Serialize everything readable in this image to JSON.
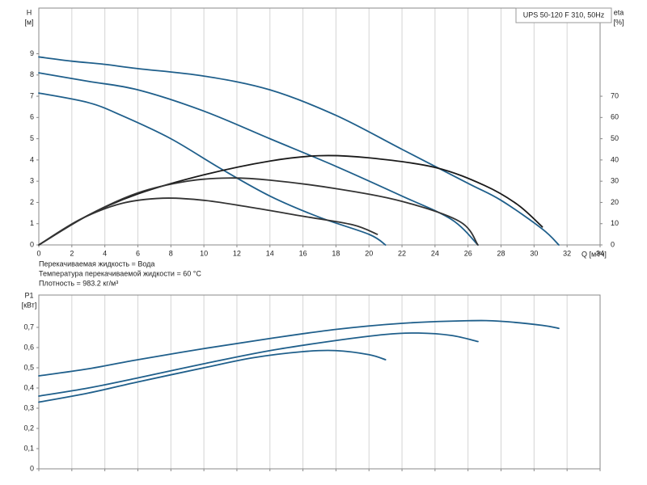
{
  "chart_data": [
    {
      "type": "line",
      "title": "UPS 50-120 F 310, 50Hz",
      "y_label": "H",
      "y_unit": "[м]",
      "y2_label": "eta",
      "y2_unit": "[%]",
      "x_label": "Q [м³/ч]",
      "notes": [
        "Перекачиваемая жидкость = Вода",
        "Температура перекачиваемой жидкости = 60 °C",
        "Плотность = 983.2 кг/м³"
      ],
      "xlim": [
        0,
        34
      ],
      "xticks": [
        0,
        2,
        4,
        6,
        8,
        10,
        12,
        14,
        16,
        18,
        20,
        22,
        24,
        26,
        28,
        30,
        32,
        34
      ],
      "ylim": [
        0,
        11.15
      ],
      "yticks": [
        0,
        1,
        2,
        3,
        4,
        5,
        6,
        7,
        8,
        9
      ],
      "y2lim": [
        0,
        111.5
      ],
      "y2ticks": [
        0,
        10,
        20,
        30,
        40,
        50,
        60,
        70
      ],
      "grid": "x",
      "series": [
        {
          "color": "#1f5f8b",
          "x": [
            0,
            2,
            4,
            6,
            10,
            14,
            18,
            22,
            26,
            28,
            30.5,
            31.5
          ],
          "values": [
            8.85,
            8.65,
            8.5,
            8.3,
            7.95,
            7.3,
            6.1,
            4.5,
            2.9,
            2.1,
            0.75,
            0
          ]
        },
        {
          "color": "#1f5f8b",
          "x": [
            0,
            3,
            6,
            10,
            14,
            18,
            22,
            25,
            26.6
          ],
          "values": [
            8.1,
            7.7,
            7.3,
            6.3,
            5.0,
            3.7,
            2.3,
            1.2,
            0
          ]
        },
        {
          "color": "#1f5f8b",
          "x": [
            0,
            3,
            5,
            8,
            11,
            14,
            17,
            20,
            21
          ],
          "values": [
            7.15,
            6.7,
            6.1,
            5.0,
            3.6,
            2.3,
            1.3,
            0.5,
            0
          ]
        },
        {
          "color": "#1a1a1a",
          "axis": "y2",
          "x": [
            0,
            3,
            6,
            10,
            14,
            17,
            20,
            24,
            27,
            29,
            30.5
          ],
          "values": [
            0,
            14,
            24,
            33,
            39.5,
            42,
            41,
            36.5,
            28,
            19,
            8.5
          ]
        },
        {
          "color": "#333333",
          "axis": "y2",
          "x": [
            0,
            3,
            6,
            9,
            11.5,
            14,
            18,
            22,
            25.5,
            26.6
          ],
          "values": [
            0,
            14,
            24.5,
            30,
            31.5,
            30.5,
            26.5,
            20.5,
            11,
            0
          ]
        },
        {
          "color": "#333333",
          "axis": "y2",
          "x": [
            0,
            2.5,
            5,
            7.5,
            10,
            13,
            16,
            19,
            20.5
          ],
          "values": [
            0,
            12,
            19.5,
            22,
            21,
            17.5,
            13.5,
            9.5,
            5
          ]
        }
      ]
    },
    {
      "type": "line",
      "y_label": "P1",
      "y_unit": "[кВт]",
      "xlim": [
        0,
        34
      ],
      "xticks": [
        0,
        2,
        4,
        6,
        8,
        10,
        12,
        14,
        16,
        18,
        20,
        22,
        24,
        26,
        28,
        30,
        32,
        34
      ],
      "ylim": [
        0,
        0.86
      ],
      "yticks": [
        {
          "value": 0,
          "label": "0"
        },
        {
          "value": 0.1,
          "label": "0,1"
        },
        {
          "value": 0.2,
          "label": "0,2"
        },
        {
          "value": 0.3,
          "label": "0,3"
        },
        {
          "value": 0.4,
          "label": "0,4"
        },
        {
          "value": 0.5,
          "label": "0,5"
        },
        {
          "value": 0.6,
          "label": "0,6"
        },
        {
          "value": 0.7,
          "label": "0,7"
        }
      ],
      "grid": "x",
      "series": [
        {
          "color": "#1f5f8b",
          "x": [
            0,
            3,
            6,
            10,
            14,
            18,
            22,
            26,
            28,
            30.5,
            31.5
          ],
          "values": [
            0.46,
            0.495,
            0.54,
            0.595,
            0.645,
            0.69,
            0.72,
            0.733,
            0.73,
            0.71,
            0.695
          ]
        },
        {
          "color": "#1f5f8b",
          "x": [
            0,
            3,
            6,
            10,
            14,
            18,
            21,
            23,
            25,
            26.6
          ],
          "values": [
            0.36,
            0.4,
            0.45,
            0.52,
            0.585,
            0.635,
            0.665,
            0.672,
            0.66,
            0.63
          ]
        },
        {
          "color": "#1f5f8b",
          "x": [
            0,
            3,
            6,
            10,
            13,
            16,
            18,
            20,
            21
          ],
          "values": [
            0.33,
            0.375,
            0.43,
            0.5,
            0.55,
            0.58,
            0.585,
            0.565,
            0.54
          ]
        }
      ]
    }
  ]
}
